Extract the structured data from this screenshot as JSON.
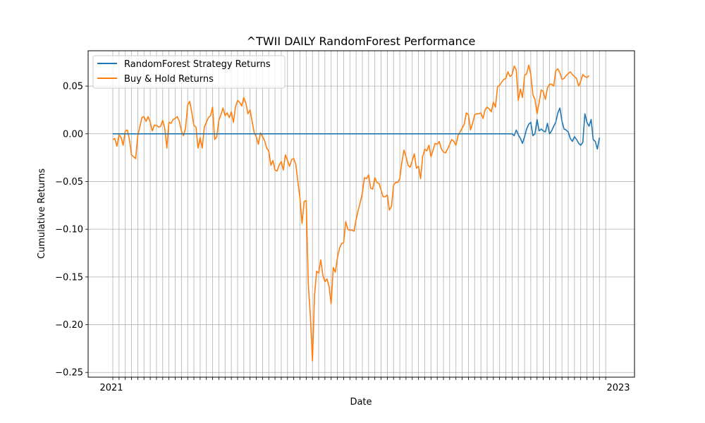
{
  "chart_data": {
    "type": "line",
    "title": "^TWII DAILY RandomForest Performance",
    "xlabel": "Date",
    "ylabel": "Cumulative Returns",
    "ylim": [
      -0.255,
      0.087
    ],
    "y_ticks": [
      -0.25,
      -0.2,
      -0.15,
      -0.1,
      -0.05,
      0.0,
      0.05
    ],
    "y_tick_labels": [
      "−0.25",
      "−0.20",
      "−0.15",
      "−0.10",
      "−0.05",
      "0.00",
      "0.05"
    ],
    "grid": true,
    "legend_position": "upper-left",
    "x_points": 240,
    "series": [
      {
        "name": "RandomForest Strategy Returns",
        "color": "#1f77b4",
        "values": [
          0,
          0,
          0,
          0,
          0,
          0,
          0,
          0,
          0,
          0,
          0,
          0,
          0,
          0,
          0,
          0,
          0,
          0,
          0,
          0,
          0,
          0,
          0,
          0,
          0,
          0,
          0,
          0,
          0,
          0,
          0,
          0,
          0,
          0,
          0,
          0,
          0,
          0,
          0,
          0,
          0,
          0,
          0,
          0,
          0,
          0,
          0,
          0,
          0,
          0,
          0,
          0,
          0,
          0,
          0,
          0,
          0,
          0,
          0,
          0,
          0,
          0,
          0,
          0,
          0,
          0,
          0,
          0,
          0,
          0,
          0,
          0,
          0,
          0,
          0,
          0,
          0,
          0,
          0,
          0,
          0,
          0,
          0,
          0,
          0,
          0,
          0,
          0,
          0,
          0,
          0,
          0,
          0,
          0,
          0,
          0,
          0,
          0,
          0,
          0,
          0,
          0,
          0,
          0,
          0,
          0,
          0,
          0,
          0,
          0,
          0,
          0,
          0,
          0,
          0,
          0,
          0,
          0,
          0,
          0,
          0,
          0,
          0,
          0,
          0,
          0,
          0,
          0,
          0,
          0,
          0,
          0,
          0,
          0,
          0,
          0,
          0,
          0,
          0,
          0,
          0,
          0,
          0,
          0,
          0,
          0,
          0,
          0,
          0,
          0,
          0,
          0,
          0,
          0,
          0,
          0,
          0,
          0,
          0,
          0,
          0,
          0,
          0,
          0,
          0,
          0,
          0,
          0,
          0,
          0,
          0,
          0,
          0,
          0,
          0,
          0,
          0,
          0,
          0,
          0,
          0,
          0,
          0,
          0,
          0,
          0,
          0,
          0,
          0,
          0,
          0,
          0,
          0,
          -0.002,
          0.004,
          -0.001,
          -0.005,
          -0.01,
          -0.003,
          0.005,
          0.01,
          0.012,
          -0.002,
          0.0,
          0.015,
          0.003,
          0.005,
          0.003,
          0.002,
          0.011,
          0.0,
          0.003,
          0.008,
          0.012,
          0.022,
          0.027,
          0.013,
          0.005,
          0.004,
          0.002,
          -0.005,
          -0.008,
          -0.003,
          -0.006,
          -0.01,
          -0.012,
          -0.009,
          0.021,
          0.012,
          0.008,
          0.015,
          -0.006,
          -0.008,
          -0.016,
          -0.004
        ]
      },
      {
        "name": "Buy & Hold Returns",
        "color": "#ff7f0e",
        "values": [
          -0.006,
          -0.005,
          -0.013,
          -0.001,
          -0.004,
          -0.012,
          0.003,
          0.004,
          -0.006,
          -0.022,
          -0.024,
          -0.026,
          -0.002,
          0.007,
          0.017,
          0.018,
          0.013,
          0.018,
          0.012,
          0.003,
          0.009,
          0.009,
          0.007,
          0.008,
          0.014,
          0.006,
          -0.015,
          0.012,
          0.011,
          0.015,
          0.016,
          0.018,
          0.013,
          0.003,
          -0.002,
          0.006,
          0.03,
          0.034,
          0.022,
          0.009,
          0.007,
          -0.015,
          -0.004,
          -0.015,
          0.007,
          0.012,
          0.017,
          0.019,
          0.028,
          -0.006,
          -0.003,
          0.014,
          0.02,
          0.027,
          0.019,
          0.022,
          0.017,
          0.023,
          0.012,
          0.028,
          0.035,
          0.033,
          0.029,
          0.038,
          0.032,
          0.021,
          0.025,
          0.013,
          0.001,
          -0.003,
          -0.011,
          0.001,
          -0.003,
          -0.007,
          -0.015,
          -0.018,
          -0.033,
          -0.028,
          -0.038,
          -0.039,
          -0.033,
          -0.029,
          -0.038,
          -0.022,
          -0.028,
          -0.034,
          -0.027,
          -0.026,
          -0.032,
          -0.05,
          -0.068,
          -0.094,
          -0.071,
          -0.07,
          -0.158,
          -0.19,
          -0.238,
          -0.17,
          -0.144,
          -0.146,
          -0.132,
          -0.148,
          -0.155,
          -0.152,
          -0.16,
          -0.178,
          -0.14,
          -0.145,
          -0.13,
          -0.12,
          -0.115,
          -0.114,
          -0.092,
          -0.1,
          -0.101,
          -0.101,
          -0.102,
          -0.09,
          -0.08,
          -0.072,
          -0.062,
          -0.046,
          -0.047,
          -0.043,
          -0.057,
          -0.058,
          -0.046,
          -0.051,
          -0.052,
          -0.059,
          -0.066,
          -0.066,
          -0.064,
          -0.08,
          -0.076,
          -0.054,
          -0.051,
          -0.051,
          -0.047,
          -0.03,
          -0.017,
          -0.024,
          -0.033,
          -0.035,
          -0.028,
          -0.021,
          -0.036,
          -0.034,
          -0.047,
          -0.024,
          -0.016,
          -0.018,
          -0.012,
          -0.024,
          -0.017,
          -0.01,
          -0.011,
          -0.008,
          -0.016,
          -0.019,
          -0.02,
          -0.016,
          -0.011,
          -0.006,
          -0.008,
          -0.012,
          -0.002,
          0.002,
          0.006,
          0.01,
          0.022,
          0.02,
          0.004,
          0.011,
          0.02,
          0.021,
          0.021,
          0.022,
          0.016,
          0.025,
          0.028,
          0.026,
          0.023,
          0.033,
          0.028,
          0.049,
          0.051,
          0.054,
          0.057,
          0.058,
          0.065,
          0.06,
          0.062,
          0.071,
          0.067,
          0.035,
          0.047,
          0.038,
          0.061,
          0.063,
          0.072,
          0.062,
          0.041,
          0.036,
          0.021,
          0.033,
          0.046,
          0.044,
          0.036,
          0.048,
          0.052,
          0.052,
          0.05,
          0.066,
          0.068,
          0.064,
          0.057,
          0.058,
          0.061,
          0.063,
          0.065,
          0.062,
          0.06,
          0.058,
          0.05,
          0.055,
          0.062,
          0.06,
          0.059,
          0.061
        ]
      }
    ],
    "x_tick_labels_note": "",
    "x_tick_first": "2021",
    "x_tick_last": "2023"
  }
}
